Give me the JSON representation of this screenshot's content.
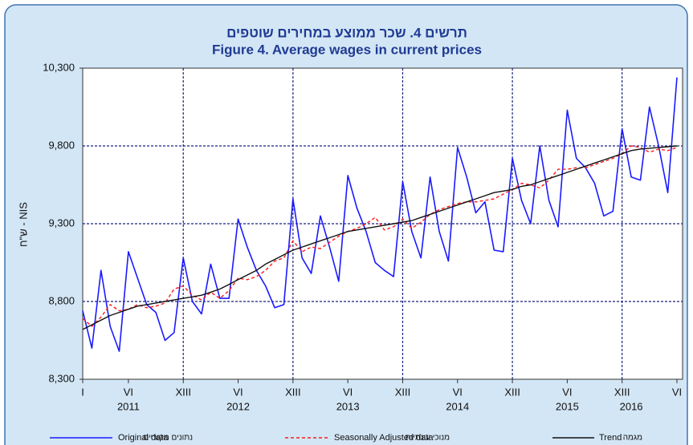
{
  "chart_data": {
    "type": "line",
    "title_he": "תרשים 4. שכר ממוצע במחירים שוטפים",
    "title": "Figure 4. Average wages in current prices",
    "ylabel": "ש\"ח - NIS",
    "categories": [
      "I",
      null,
      null,
      null,
      null,
      "VI",
      null,
      null,
      null,
      null,
      null,
      "XIII",
      null,
      null,
      null,
      null,
      null,
      "VI",
      null,
      null,
      null,
      null,
      null,
      "XIII",
      null,
      null,
      null,
      null,
      null,
      "VI",
      null,
      null,
      null,
      null,
      null,
      "XIII",
      null,
      null,
      null,
      null,
      null,
      "VI",
      null,
      null,
      null,
      null,
      null,
      "XIII",
      null,
      null,
      null,
      null,
      null,
      "VI",
      null,
      null,
      null,
      null,
      null,
      "XIII",
      null,
      null,
      null,
      null,
      null,
      "VI"
    ],
    "years": [
      null,
      null,
      null,
      null,
      null,
      "2011",
      null,
      null,
      null,
      null,
      null,
      null,
      null,
      null,
      null,
      null,
      null,
      "2012",
      null,
      null,
      null,
      null,
      null,
      null,
      null,
      null,
      null,
      null,
      null,
      "2013",
      null,
      null,
      null,
      null,
      null,
      null,
      null,
      null,
      null,
      null,
      null,
      "2014",
      null,
      null,
      null,
      null,
      null,
      null,
      null,
      null,
      null,
      null,
      null,
      "2015",
      null,
      null,
      null,
      null,
      null,
      null,
      "2016",
      null,
      null,
      null,
      null,
      null
    ],
    "xgrid": [
      11,
      23,
      35,
      47,
      59
    ],
    "ylim": [
      8300,
      10300
    ],
    "yticks": [
      {
        "value": 8300,
        "label": "8,300"
      },
      {
        "value": 8800,
        "label": "8,800"
      },
      {
        "value": 9300,
        "label": "9,300"
      },
      {
        "value": 9800,
        "label": "9,800"
      },
      {
        "value": 10300,
        "label": "10,300"
      }
    ],
    "grid": true,
    "series": [
      {
        "name": "Original data",
        "name_he": "נתונים מקוריים",
        "color": "#1a1aff",
        "dash": "none",
        "values": [
          8740,
          8500,
          9000,
          8640,
          8480,
          9120,
          8950,
          8780,
          8730,
          8550,
          8600,
          9080,
          8800,
          8720,
          9040,
          8820,
          8820,
          9330,
          9150,
          9000,
          8900,
          8760,
          8780,
          9460,
          9080,
          8980,
          9350,
          9150,
          8930,
          9610,
          9400,
          9250,
          9050,
          9000,
          8960,
          9570,
          9250,
          9080,
          9600,
          9250,
          9060,
          9790,
          9600,
          9370,
          9440,
          9130,
          9120,
          9720,
          9450,
          9300,
          9800,
          9450,
          9280,
          10030,
          9720,
          9660,
          9560,
          9350,
          9380,
          9910,
          9600,
          9580,
          10050,
          9800,
          9500,
          10240
        ]
      },
      {
        "name": "Seasonally Adjusted data",
        "name_he": "מנוכי עונתיות",
        "color": "#ff1a1a",
        "dash": "4 3",
        "values": [
          8690,
          8640,
          8700,
          8780,
          8740,
          8750,
          8780,
          8760,
          8770,
          8790,
          8880,
          8900,
          8840,
          8810,
          8860,
          8820,
          8870,
          8950,
          8940,
          8960,
          9000,
          9060,
          9080,
          9190,
          9120,
          9150,
          9140,
          9180,
          9220,
          9250,
          9270,
          9300,
          9340,
          9260,
          9280,
          9330,
          9270,
          9310,
          9360,
          9390,
          9410,
          9430,
          9440,
          9440,
          9450,
          9460,
          9490,
          9520,
          9560,
          9550,
          9530,
          9580,
          9650,
          9650,
          9660,
          9660,
          9680,
          9700,
          9720,
          9750,
          9800,
          9790,
          9760,
          9780,
          9770,
          9790
        ]
      },
      {
        "name": "Trend",
        "name_he": "מגמה",
        "color": "#111111",
        "dash": "none",
        "values": [
          8620,
          8650,
          8680,
          8710,
          8730,
          8750,
          8770,
          8780,
          8790,
          8800,
          8810,
          8820,
          8830,
          8840,
          8860,
          8880,
          8910,
          8940,
          8970,
          9000,
          9040,
          9070,
          9100,
          9130,
          9150,
          9170,
          9190,
          9210,
          9230,
          9250,
          9260,
          9270,
          9280,
          9290,
          9300,
          9310,
          9320,
          9340,
          9360,
          9380,
          9400,
          9420,
          9440,
          9460,
          9480,
          9500,
          9510,
          9520,
          9540,
          9550,
          9570,
          9590,
          9610,
          9630,
          9650,
          9670,
          9690,
          9710,
          9730,
          9750,
          9770,
          9780,
          9785,
          9790,
          9795,
          9800
        ]
      }
    ]
  }
}
